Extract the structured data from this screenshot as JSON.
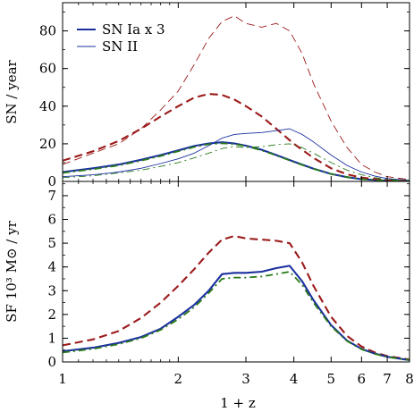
{
  "xlabel": "1 + z",
  "colors": {
    "sn_ia": "#1a2f9e",
    "total": "#9b1a1a",
    "model": "#2a7a1a"
  },
  "chart_data": [
    {
      "type": "line",
      "panel": "top",
      "ylabel": "SN / year",
      "xscale": "log",
      "xlim": [
        1,
        8
      ],
      "ylim": [
        0,
        95
      ],
      "xticks": [
        1,
        2,
        3,
        4,
        5,
        6,
        7,
        8
      ],
      "yticks": [
        0,
        20,
        40,
        60,
        80
      ],
      "legend": {
        "placement": "top-left",
        "entries": [
          {
            "label": "SN Ia x 3",
            "color": "#1a2f9e",
            "style": "solid-thick"
          },
          {
            "label": "SN II",
            "color": "#1a2f9e",
            "style": "solid-thin"
          }
        ]
      },
      "series": [
        {
          "name": "SN Ia x 3",
          "color": "#1a2f9e",
          "style": "solid-thick",
          "x": [
            1.0,
            1.2,
            1.4,
            1.6,
            1.8,
            2.0,
            2.2,
            2.4,
            2.6,
            2.8,
            3.0,
            3.3,
            3.6,
            4.0,
            4.5,
            5.0,
            5.5,
            6.0,
            7.0,
            8.0
          ],
          "y": [
            5,
            7,
            9,
            11.5,
            14,
            16.5,
            18.8,
            20.2,
            20.8,
            20.2,
            19,
            16.8,
            14,
            10.5,
            6.8,
            4,
            2.3,
            1.2,
            0.4,
            0.1
          ]
        },
        {
          "name": "",
          "color": "#9b1a1a",
          "style": "dashed-thick",
          "x": [
            1.0,
            1.2,
            1.4,
            1.6,
            1.8,
            2.0,
            2.2,
            2.4,
            2.6,
            2.8,
            3.0,
            3.3,
            3.6,
            4.0,
            4.5,
            5.0,
            5.5,
            6.0,
            7.0,
            8.0
          ],
          "y": [
            11,
            16,
            21.5,
            28,
            34.5,
            40,
            44.5,
            46.5,
            46,
            43.5,
            40,
            34.5,
            28,
            20,
            12.5,
            7,
            3.8,
            2,
            0.6,
            0.2
          ]
        },
        {
          "name": "",
          "color": "#2a7a1a",
          "style": "dashdot-thick",
          "x": [
            1.0,
            1.2,
            1.4,
            1.6,
            1.8,
            2.0,
            2.2,
            2.4,
            2.6,
            2.8,
            3.0,
            3.3,
            3.6,
            4.0,
            4.5,
            5.0,
            5.5,
            6.0,
            7.0,
            8.0
          ],
          "y": [
            4.5,
            6.5,
            8.5,
            11,
            13.5,
            16,
            18.3,
            19.8,
            20.3,
            19.8,
            18.8,
            16.5,
            13.8,
            10.3,
            6.7,
            4,
            2.3,
            1.2,
            0.4,
            0.1
          ]
        },
        {
          "name": "SN II",
          "color": "#1a2f9e",
          "style": "solid-thin",
          "x": [
            1.0,
            1.2,
            1.4,
            1.6,
            1.8,
            2.0,
            2.2,
            2.4,
            2.6,
            2.8,
            3.0,
            3.3,
            3.6,
            3.9,
            4.2,
            4.5,
            5.0,
            5.5,
            6.0,
            6.5,
            7.0,
            8.0
          ],
          "y": [
            2.5,
            3.5,
            5,
            7,
            9.5,
            12,
            15,
            19,
            23,
            25,
            25.5,
            26,
            27,
            28,
            25,
            21,
            14,
            8.5,
            5,
            2.8,
            1.5,
            0.6
          ]
        },
        {
          "name": "",
          "color": "#9b1a1a",
          "style": "dashed-thin",
          "x": [
            1.0,
            1.2,
            1.4,
            1.6,
            1.8,
            2.0,
            2.2,
            2.4,
            2.6,
            2.8,
            3.0,
            3.3,
            3.6,
            3.9,
            4.2,
            4.5,
            5.0,
            5.5,
            6.0,
            6.5,
            7.0,
            8.0
          ],
          "y": [
            9,
            15,
            20,
            28,
            38,
            48,
            62,
            76,
            85,
            88,
            84,
            82,
            84,
            80,
            68,
            52,
            32,
            18,
            9,
            5,
            2.5,
            1
          ]
        },
        {
          "name": "",
          "color": "#2a7a1a",
          "style": "dashdot-thin",
          "x": [
            1.0,
            1.2,
            1.4,
            1.6,
            1.8,
            2.0,
            2.2,
            2.4,
            2.6,
            2.8,
            3.0,
            3.3,
            3.6,
            3.9,
            4.2,
            4.5,
            5.0,
            5.5,
            6.0,
            6.5,
            7.0,
            8.0
          ],
          "y": [
            2,
            3,
            4.5,
            6,
            8,
            10,
            12.5,
            15,
            17.5,
            18.5,
            18,
            18.5,
            19.5,
            20,
            18,
            15,
            10,
            6,
            3.5,
            2,
            1.1,
            0.4
          ]
        }
      ]
    },
    {
      "type": "line",
      "panel": "bottom",
      "ylabel": "SF 10³ M⊙ / yr",
      "xscale": "log",
      "xlim": [
        1,
        8
      ],
      "ylim": [
        0,
        7.6
      ],
      "xticks": [
        1,
        2,
        3,
        4,
        5,
        6,
        7,
        8
      ],
      "yticks": [
        0,
        1,
        2,
        3,
        4,
        5,
        6,
        7
      ],
      "series": [
        {
          "name": "",
          "color": "#9b1a1a",
          "style": "dashed-thick",
          "x": [
            1.0,
            1.2,
            1.4,
            1.6,
            1.8,
            2.0,
            2.2,
            2.4,
            2.6,
            2.8,
            3.0,
            3.3,
            3.6,
            3.9,
            4.2,
            4.5,
            5.0,
            5.5,
            6.0,
            6.5,
            7.0,
            8.0
          ],
          "y": [
            0.7,
            0.95,
            1.3,
            1.85,
            2.5,
            3.2,
            3.9,
            4.6,
            5.15,
            5.3,
            5.2,
            5.15,
            5.1,
            5.0,
            4.2,
            3.2,
            1.9,
            1.1,
            0.65,
            0.4,
            0.25,
            0.1
          ]
        },
        {
          "name": "",
          "color": "#1a2f9e",
          "style": "solid-thick",
          "x": [
            1.0,
            1.2,
            1.4,
            1.6,
            1.8,
            2.0,
            2.2,
            2.4,
            2.6,
            2.8,
            3.0,
            3.3,
            3.6,
            3.9,
            4.2,
            4.5,
            5.0,
            5.5,
            6.0,
            6.5,
            7.0,
            8.0
          ],
          "y": [
            0.45,
            0.6,
            0.8,
            1.05,
            1.4,
            1.9,
            2.4,
            3.0,
            3.7,
            3.75,
            3.75,
            3.8,
            3.95,
            4.05,
            3.4,
            2.6,
            1.55,
            0.9,
            0.55,
            0.35,
            0.22,
            0.08
          ]
        },
        {
          "name": "",
          "color": "#2a7a1a",
          "style": "dashdot-thick",
          "x": [
            1.0,
            1.2,
            1.4,
            1.6,
            1.8,
            2.0,
            2.2,
            2.4,
            2.6,
            2.8,
            3.0,
            3.3,
            3.6,
            3.9,
            4.2,
            4.5,
            5.0,
            5.5,
            6.0,
            6.5,
            7.0,
            8.0
          ],
          "y": [
            0.4,
            0.55,
            0.75,
            1.0,
            1.35,
            1.8,
            2.3,
            2.9,
            3.5,
            3.55,
            3.55,
            3.6,
            3.7,
            3.8,
            3.25,
            2.5,
            1.5,
            0.88,
            0.53,
            0.34,
            0.21,
            0.08
          ]
        }
      ]
    }
  ]
}
